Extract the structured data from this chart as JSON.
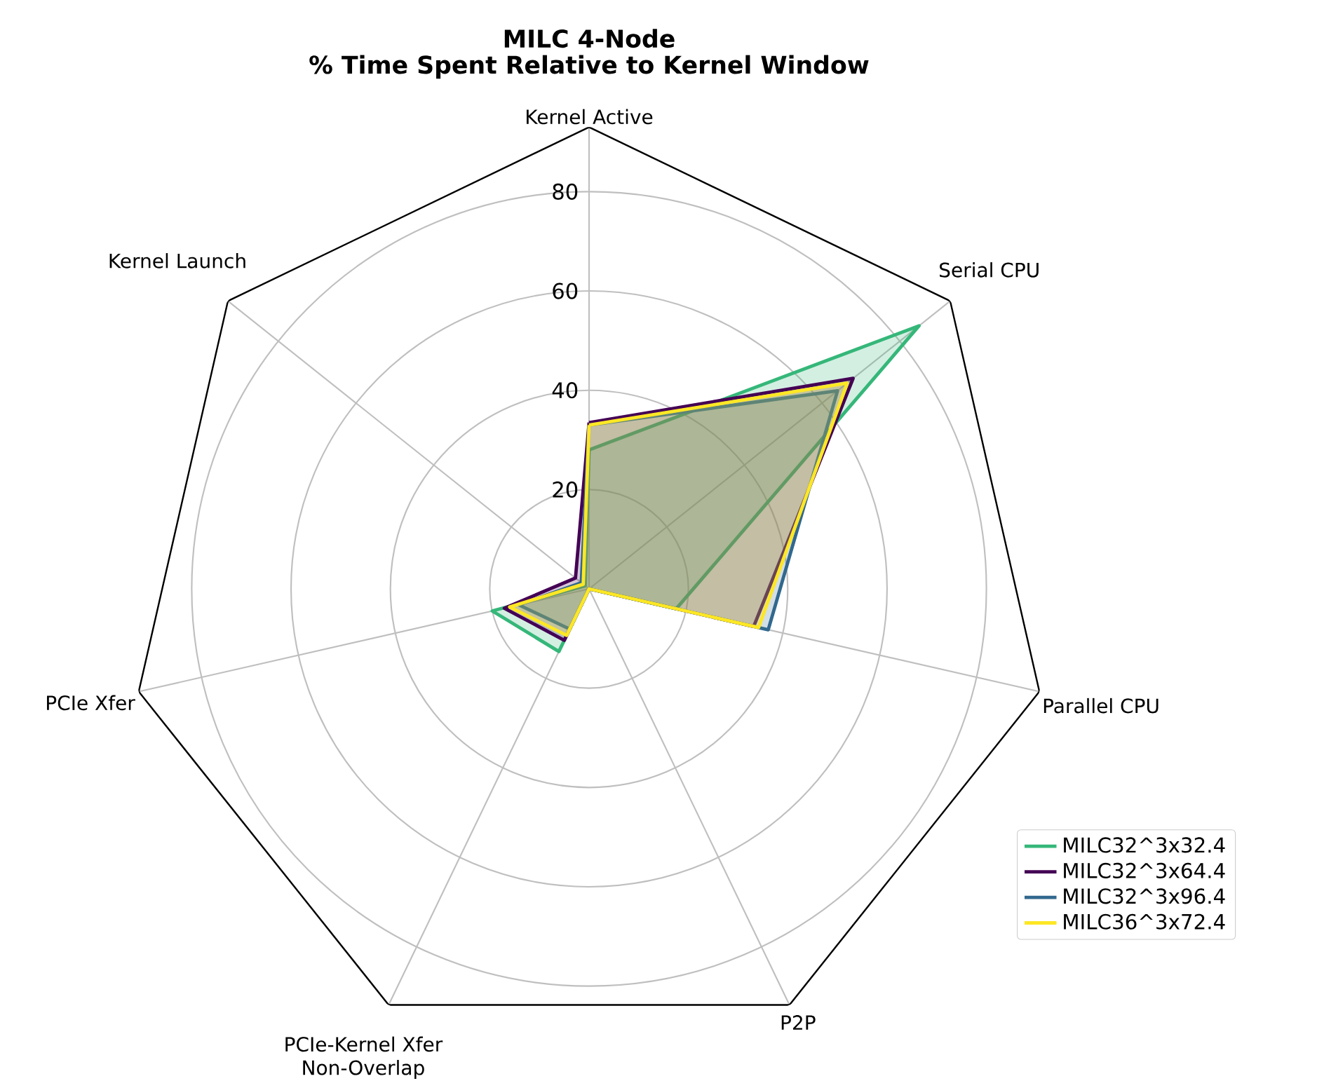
{
  "chart_data": {
    "type": "radar",
    "title": "MILC 4-Node",
    "subtitle": "% Time Spent Relative to Kernel Window",
    "categories": [
      "Kernel Active",
      "Serial CPU",
      "Parallel CPU",
      "P2P",
      "PCIe-Kernel Xfer Non-Overlap",
      "PCIe Xfer",
      "Kernel Launch"
    ],
    "ylim": [
      0,
      93
    ],
    "yticks": [
      20,
      40,
      60,
      80
    ],
    "grid": true,
    "legend": "bottom right",
    "series": [
      {
        "name": "MILC32^3x32.4",
        "color": "#35b779",
        "values": [
          28,
          85,
          18,
          0,
          14,
          20,
          1
        ]
      },
      {
        "name": "MILC32^3x64.4",
        "color": "#440154",
        "values": [
          33.5,
          68,
          34,
          0,
          11.5,
          17.5,
          3.5
        ]
      },
      {
        "name": "MILC32^3x96.4",
        "color": "#31688e",
        "values": [
          33,
          64,
          37,
          0,
          9,
          14.5,
          2
        ]
      },
      {
        "name": "MILC36^3x72.4",
        "color": "#fde725",
        "values": [
          33,
          66.5,
          35,
          0,
          10.4,
          16.4,
          1.5
        ]
      }
    ]
  }
}
